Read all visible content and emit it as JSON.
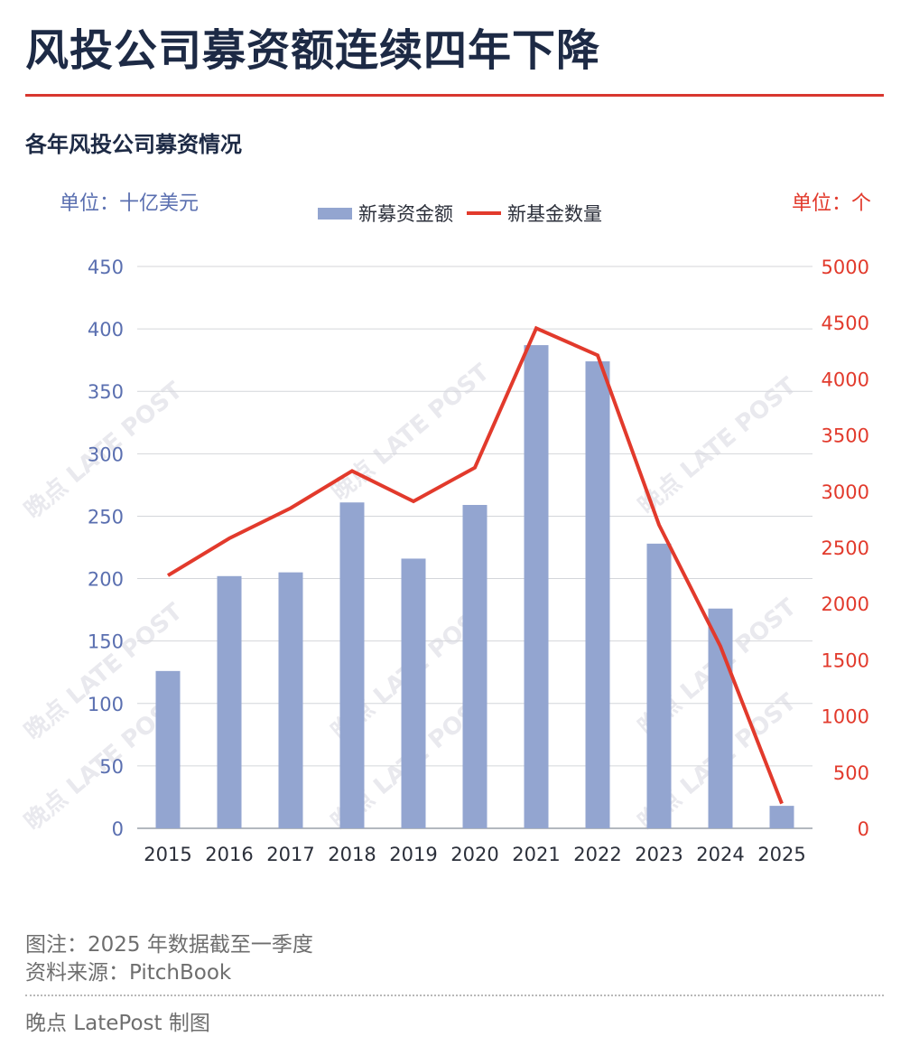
{
  "header": {
    "title": "风投公司募资额连续四年下降",
    "subtitle": "各年风投公司募资情况"
  },
  "chart_data": {
    "type": "bar",
    "categories": [
      "2015",
      "2016",
      "2017",
      "2018",
      "2019",
      "2020",
      "2021",
      "2022",
      "2023",
      "2024",
      "2025"
    ],
    "series": [
      {
        "name": "新募资金额",
        "kind": "bar",
        "axis": "left",
        "color": "#93a5d0",
        "values": [
          126,
          202,
          205,
          261,
          216,
          259,
          387,
          374,
          228,
          176,
          18
        ]
      },
      {
        "name": "新基金数量",
        "kind": "line",
        "axis": "right",
        "color": "#e23a2c",
        "values": [
          2250,
          2580,
          2850,
          3180,
          2910,
          3210,
          4450,
          4210,
          2700,
          1620,
          220
        ]
      }
    ],
    "left_axis": {
      "unit_label": "单位：十亿美元",
      "min": 0,
      "max": 450,
      "step": 50,
      "ticks": [
        "0",
        "50",
        "100",
        "150",
        "200",
        "250",
        "300",
        "350",
        "400",
        "450"
      ],
      "color": "#5a6fb0"
    },
    "right_axis": {
      "unit_label": "单位：个",
      "min": 0,
      "max": 5000,
      "step": 500,
      "ticks": [
        "0",
        "500",
        "1000",
        "1500",
        "2000",
        "2500",
        "3000",
        "3500",
        "4000",
        "4500",
        "5000"
      ],
      "color": "#e23a2c"
    },
    "legend": {
      "position": "top-center",
      "items": [
        "新募资金额",
        "新基金数量"
      ]
    },
    "grid": true,
    "watermark": "晚点 LATE POST"
  },
  "footer": {
    "note": "图注：2025 年数据截至一季度",
    "source": "资料来源：PitchBook",
    "credit": "晚点 LatePost 制图"
  }
}
